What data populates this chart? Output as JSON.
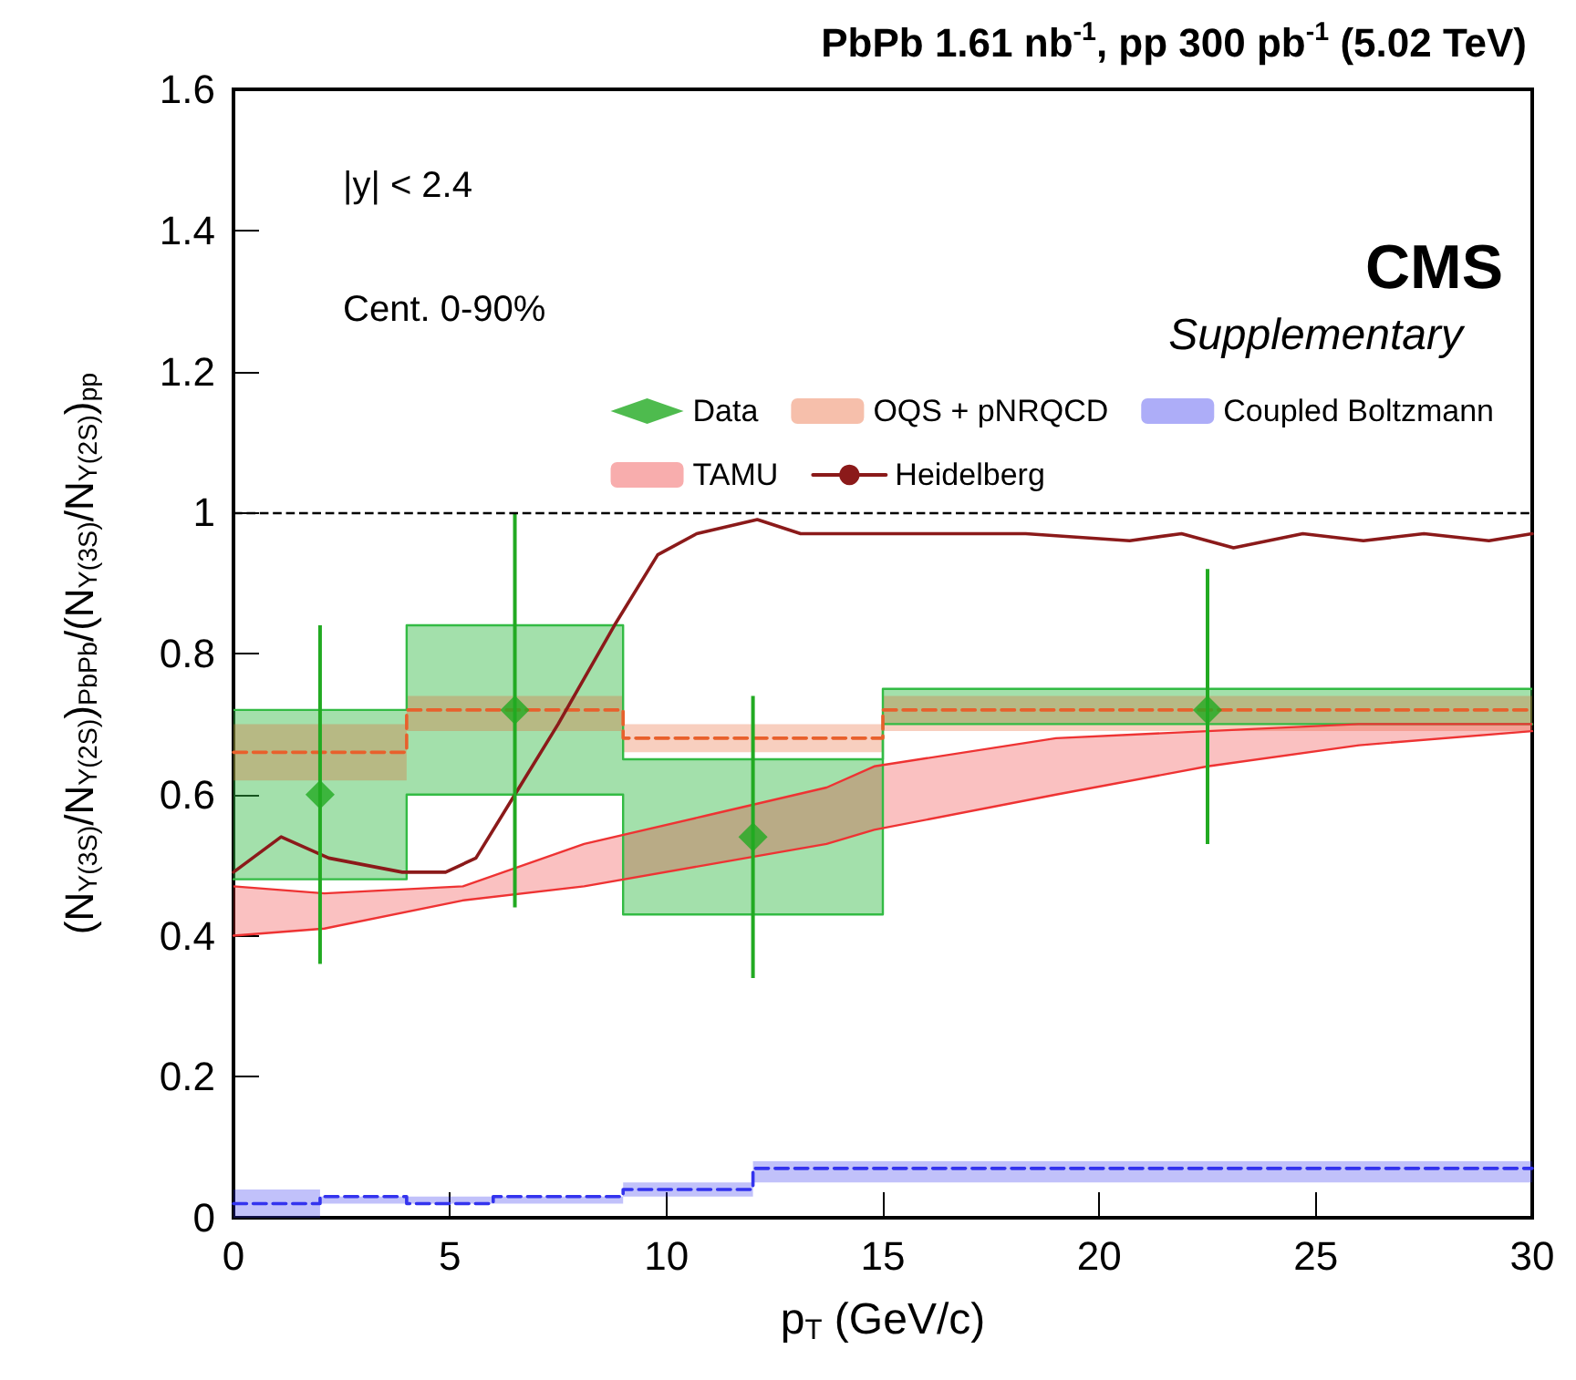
{
  "chart_data": {
    "type": "scatter",
    "title": "PbPb 1.61 nb$^{-1}$, pp 300 pb$^{-1}$ (5.02 TeV)",
    "xlabel": "p$_{T}$ (GeV/c)",
    "ylabel": "(N$_{Υ(3S)}$/N$_{Υ(2S)}$)$_{PbPb}$/(N$_{Υ(3S)}$/N$_{Υ(2S)}$)$_{pp}$",
    "annotations": [
      "|y| < 2.4",
      "Cent. 0-90%",
      "CMS",
      "Supplementary"
    ],
    "xlim": [
      0,
      30
    ],
    "xticks": [
      0,
      5,
      10,
      15,
      20,
      25,
      30
    ],
    "ylim": [
      0,
      1.6
    ],
    "yticks": [
      0,
      0.2,
      0.4,
      0.6,
      0.8,
      1,
      1.2,
      1.4,
      1.6
    ],
    "grid": false,
    "legend": "top right",
    "ref_lines": [
      {
        "axis": "y",
        "value": 1,
        "color": "#000000",
        "line_style": "dashed"
      }
    ],
    "series": [
      {
        "type": "area",
        "color": "#33bb44",
        "x": [
          0,
          4,
          4,
          9,
          9,
          15,
          15,
          30
        ],
        "values": [
          0.72,
          0.72,
          0.84,
          0.84,
          0.65,
          0.65,
          0.75,
          0.75
        ]
      },
      {
        "type": "line",
        "color": "#33bb44",
        "line_style": "solid",
        "marker": "none",
        "x": [
          0,
          4,
          4,
          9,
          9,
          15,
          15,
          30
        ],
        "values": [
          0.48,
          0.48,
          0.6,
          0.6,
          0.43,
          0.43,
          0.7,
          0.7
        ]
      },
      {
        "type": "line",
        "name": "OQS + pNRQCD",
        "color": "#e8602c",
        "line_style": "dashed",
        "marker": "none",
        "x": [
          0,
          4,
          4,
          9,
          9,
          15,
          15,
          30
        ],
        "values": [
          0.66,
          0.66,
          0.72,
          0.72,
          0.68,
          0.68,
          0.72,
          0.72
        ],
        "lower": [
          0.62,
          0.62,
          0.69,
          0.69,
          0.66,
          0.66,
          0.69,
          0.69
        ],
        "upper": [
          0.7,
          0.7,
          0.74,
          0.74,
          0.7,
          0.7,
          0.74,
          0.74
        ]
      },
      {
        "type": "line",
        "name": "Coupled Boltzmann",
        "color": "#3333ee",
        "line_style": "dashed",
        "marker": "none",
        "x": [
          0,
          2,
          2,
          4,
          4,
          6,
          6,
          9,
          9,
          12,
          12,
          30
        ],
        "values": [
          0.02,
          0.02,
          0.03,
          0.03,
          0.02,
          0.02,
          0.03,
          0.03,
          0.04,
          0.04,
          0.07,
          0.07
        ],
        "lower": [
          0.0,
          0.0,
          0.02,
          0.02,
          0.02,
          0.02,
          0.02,
          0.02,
          0.03,
          0.03,
          0.05,
          0.05
        ],
        "upper": [
          0.04,
          0.04,
          0.03,
          0.03,
          0.03,
          0.03,
          0.03,
          0.03,
          0.05,
          0.05,
          0.08,
          0.08
        ]
      },
      {
        "type": "area",
        "name": "TAMU",
        "color": "#ee3333",
        "x": [
          0,
          2.1,
          5.3,
          8.1,
          10.9,
          13.7,
          14.8,
          19,
          22.5,
          26,
          30
        ],
        "values": [
          0.47,
          0.46,
          0.47,
          0.53,
          0.57,
          0.61,
          0.64,
          0.68,
          0.69,
          0.7,
          0.7
        ]
      },
      {
        "type": "line",
        "color": "#ee3333",
        "line_style": "solid",
        "marker": "none",
        "x": [
          0,
          2.1,
          5.3,
          8.1,
          10.9,
          13.7,
          14.8,
          19,
          22.5,
          26,
          30
        ],
        "values": [
          0.4,
          0.41,
          0.45,
          0.47,
          0.5,
          0.53,
          0.55,
          0.6,
          0.64,
          0.67,
          0.69
        ]
      },
      {
        "type": "line",
        "name": "Heidelberg",
        "color": "#8b1a1a",
        "line_style": "solid",
        "marker": "none",
        "x": [
          0,
          1.1,
          2.2,
          3.9,
          4.9,
          5.6,
          6.5,
          7.5,
          8.8,
          9.8,
          10.7,
          12.1,
          13.1,
          15.8,
          18.3,
          20.7,
          21.9,
          23.1,
          24.7,
          26.1,
          27.5,
          29,
          30
        ],
        "values": [
          0.49,
          0.54,
          0.51,
          0.49,
          0.49,
          0.51,
          0.6,
          0.7,
          0.84,
          0.94,
          0.97,
          0.99,
          0.97,
          0.97,
          0.97,
          0.96,
          0.97,
          0.95,
          0.97,
          0.96,
          0.97,
          0.96,
          0.97
        ]
      },
      {
        "name": "Data",
        "color": "#22aa22",
        "marker": "diamond",
        "x": [
          2,
          6.5,
          12,
          22.5
        ],
        "values": [
          0.6,
          0.72,
          0.54,
          0.72
        ],
        "errors": [
          [
            0.36,
            0.84
          ],
          [
            0.44,
            1.0
          ],
          [
            0.34,
            0.74
          ],
          [
            0.53,
            0.92
          ]
        ]
      }
    ]
  }
}
